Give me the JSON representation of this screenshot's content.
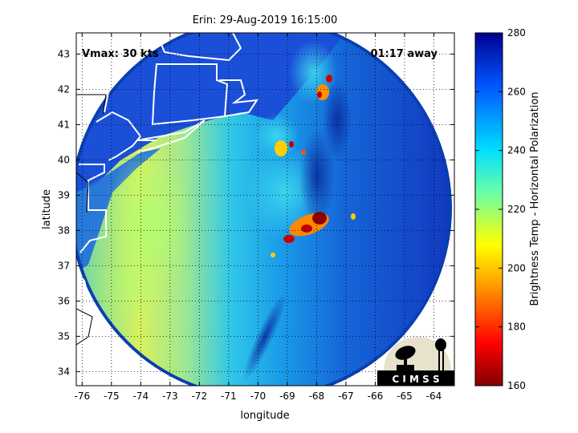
{
  "title": "Erin: 29-Aug-2019 16:15:00",
  "annotations": {
    "vmax": "Vmax: 30 kts",
    "away": "01:17 away"
  },
  "axes": {
    "xlabel": "longitude",
    "ylabel": "latitude",
    "xlim": [
      -76.2,
      -63.3
    ],
    "ylim": [
      33.6,
      43.6
    ],
    "xticks": [
      -76,
      -75,
      -74,
      -73,
      -72,
      -71,
      -70,
      -69,
      -68,
      -67,
      -66,
      -65,
      -64
    ],
    "yticks": [
      34,
      35,
      36,
      37,
      38,
      39,
      40,
      41,
      42,
      43
    ],
    "grid": "dotted"
  },
  "colorbar": {
    "label": "Brightness Temp - Horizontal Polarization",
    "min": 160,
    "max": 280,
    "ticks": [
      160,
      180,
      200,
      220,
      240,
      260,
      280
    ]
  },
  "logo": {
    "text": "C I M S S"
  },
  "colors": {
    "background_field": "#1560d8",
    "coast": "#ffffff",
    "swath_edge": "#0a3fb0"
  },
  "chart_data": {
    "type": "heatmap",
    "title": "Erin: 29-Aug-2019 16:15:00",
    "xlabel": "longitude",
    "ylabel": "latitude",
    "swath_center": [
      -69.8,
      38.7
    ],
    "swath_radius_deg": 5.9,
    "cold_cells": [
      {
        "lon": -67.9,
        "lat": 38.35,
        "value": 165
      },
      {
        "lon": -68.3,
        "lat": 38.05,
        "value": 175
      },
      {
        "lon": -68.9,
        "lat": 37.7,
        "value": 175
      },
      {
        "lon": -69.0,
        "lat": 40.15,
        "value": 180
      },
      {
        "lon": -68.0,
        "lat": 42.0,
        "value": 185
      },
      {
        "lon": -67.7,
        "lat": 42.3,
        "value": 190
      },
      {
        "lon": -68.4,
        "lat": 39.95,
        "value": 195
      }
    ]
  }
}
